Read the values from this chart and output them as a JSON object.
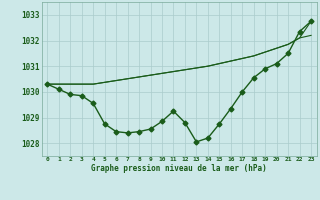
{
  "hours": [
    0,
    1,
    2,
    3,
    4,
    5,
    6,
    7,
    8,
    9,
    10,
    11,
    12,
    13,
    14,
    15,
    16,
    17,
    18,
    19,
    20,
    21,
    22,
    23
  ],
  "pressure_main": [
    1030.3,
    1030.1,
    1029.9,
    1029.85,
    1029.55,
    1028.75,
    1028.45,
    1028.4,
    1028.45,
    1028.55,
    1028.85,
    1029.25,
    1028.8,
    1028.05,
    1028.2,
    1028.75,
    1029.35,
    1030.0,
    1030.55,
    1030.9,
    1031.1,
    1031.5,
    1032.35,
    1032.75
  ],
  "pressure_line1": [
    1030.3,
    1030.3,
    1030.3,
    1030.3,
    1030.3,
    1030.37,
    1030.44,
    1030.51,
    1030.58,
    1030.65,
    1030.72,
    1030.79,
    1030.86,
    1030.93,
    1031.0,
    1031.1,
    1031.2,
    1031.3,
    1031.4,
    1031.55,
    1031.7,
    1031.85,
    1032.1,
    1032.2
  ],
  "pressure_line2": [
    1030.3,
    1030.3,
    1030.3,
    1030.3,
    1030.3,
    1030.37,
    1030.44,
    1030.51,
    1030.58,
    1030.65,
    1030.72,
    1030.79,
    1030.86,
    1030.93,
    1031.0,
    1031.1,
    1031.2,
    1031.3,
    1031.4,
    1031.55,
    1031.7,
    1031.85,
    1032.1,
    1032.75
  ],
  "ylim_min": 1027.5,
  "ylim_max": 1033.5,
  "yticks": [
    1028,
    1029,
    1030,
    1031,
    1032,
    1033
  ],
  "ytick_labels": [
    "1028",
    "1029",
    "1030",
    "1031",
    "1032",
    "1033"
  ],
  "xtick_labels": [
    "0",
    "1",
    "2",
    "3",
    "4",
    "5",
    "6",
    "7",
    "8",
    "9",
    "10",
    "11",
    "12",
    "13",
    "14",
    "15",
    "16",
    "17",
    "18",
    "19",
    "20",
    "21",
    "22",
    "23"
  ],
  "bg_color": "#cce8e8",
  "line_color": "#1a5c1a",
  "grid_color": "#aacccc",
  "xlabel": "Graphe pression niveau de la mer (hPa)",
  "marker": "D",
  "marker_size": 2.5,
  "linewidth_main": 1.0,
  "linewidth_ref": 0.8
}
